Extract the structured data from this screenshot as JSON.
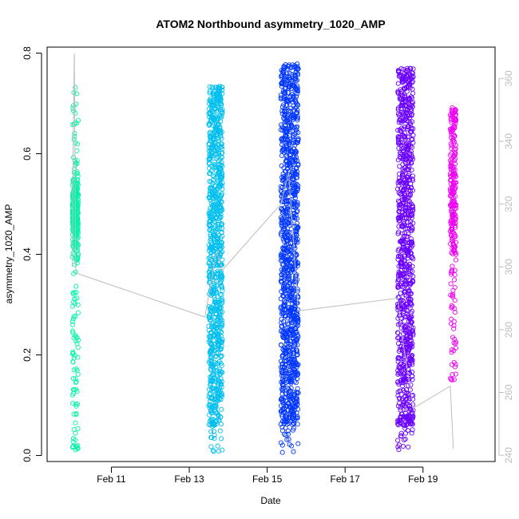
{
  "chart_data": {
    "type": "scatter",
    "title": "ATOM2 Northbound asymmetry_1020_AMP",
    "xlabel": "Date",
    "ylabel": "asymmetry_1020_AMP",
    "ylim": [
      0.0,
      0.8
    ],
    "xlim_days_feb": [
      9.35,
      20.85
    ],
    "y_ticks": [
      "0.0",
      "0.2",
      "0.4",
      "0.6",
      "0.8"
    ],
    "y_tick_values": [
      0.0,
      0.2,
      0.4,
      0.6,
      0.8
    ],
    "x_ticks": [
      "Feb 11",
      "Feb 13",
      "Feb 15",
      "Feb 17",
      "Feb 19"
    ],
    "x_tick_values": [
      11,
      13,
      15,
      17,
      19
    ],
    "y2_ticks": [
      "240",
      "260",
      "280",
      "300",
      "320",
      "340",
      "360"
    ],
    "y2_tick_values": [
      240,
      260,
      280,
      300,
      320,
      340,
      360
    ],
    "y2lim": [
      238,
      370
    ],
    "grid": false,
    "legend": "none",
    "series": [
      {
        "color": "#00f5a8",
        "x_range": [
          10.0,
          10.15
        ],
        "values_range": [
          0.005,
          0.735
        ],
        "density": "dense near 0.40-0.56"
      },
      {
        "color": "#00bfef",
        "x_range": [
          13.5,
          13.85
        ],
        "values_range": [
          0.005,
          0.735
        ],
        "density": "dense throughout"
      },
      {
        "color": "#0036ff",
        "x_range": [
          15.35,
          15.8
        ],
        "values_range": [
          0.005,
          0.78
        ],
        "density": "dense throughout"
      },
      {
        "color": "#6a00ff",
        "x_range": [
          18.35,
          18.75
        ],
        "values_range": [
          0.01,
          0.77
        ],
        "density": "dense throughout"
      },
      {
        "color": "#ee00f2",
        "x_range": [
          19.7,
          19.85
        ],
        "values_range": [
          0.15,
          0.695
        ],
        "density": "dense above 0.4"
      }
    ],
    "secondary_line": {
      "color": "#bdbdbd",
      "points": [
        {
          "x": 10.0,
          "y": 300
        },
        {
          "x": 10.02,
          "y": 340
        },
        {
          "x": 10.05,
          "y": 368
        },
        {
          "x": 10.08,
          "y": 300
        },
        {
          "x": 10.1,
          "y": 298
        },
        {
          "x": 13.4,
          "y": 284
        },
        {
          "x": 13.7,
          "y": 305
        },
        {
          "x": 13.85,
          "y": 299
        },
        {
          "x": 15.35,
          "y": 320
        },
        {
          "x": 15.55,
          "y": 330
        },
        {
          "x": 15.8,
          "y": 286
        },
        {
          "x": 18.35,
          "y": 290
        },
        {
          "x": 18.5,
          "y": 275
        },
        {
          "x": 18.75,
          "y": 255
        },
        {
          "x": 19.7,
          "y": 262
        },
        {
          "x": 19.78,
          "y": 242
        }
      ]
    }
  }
}
